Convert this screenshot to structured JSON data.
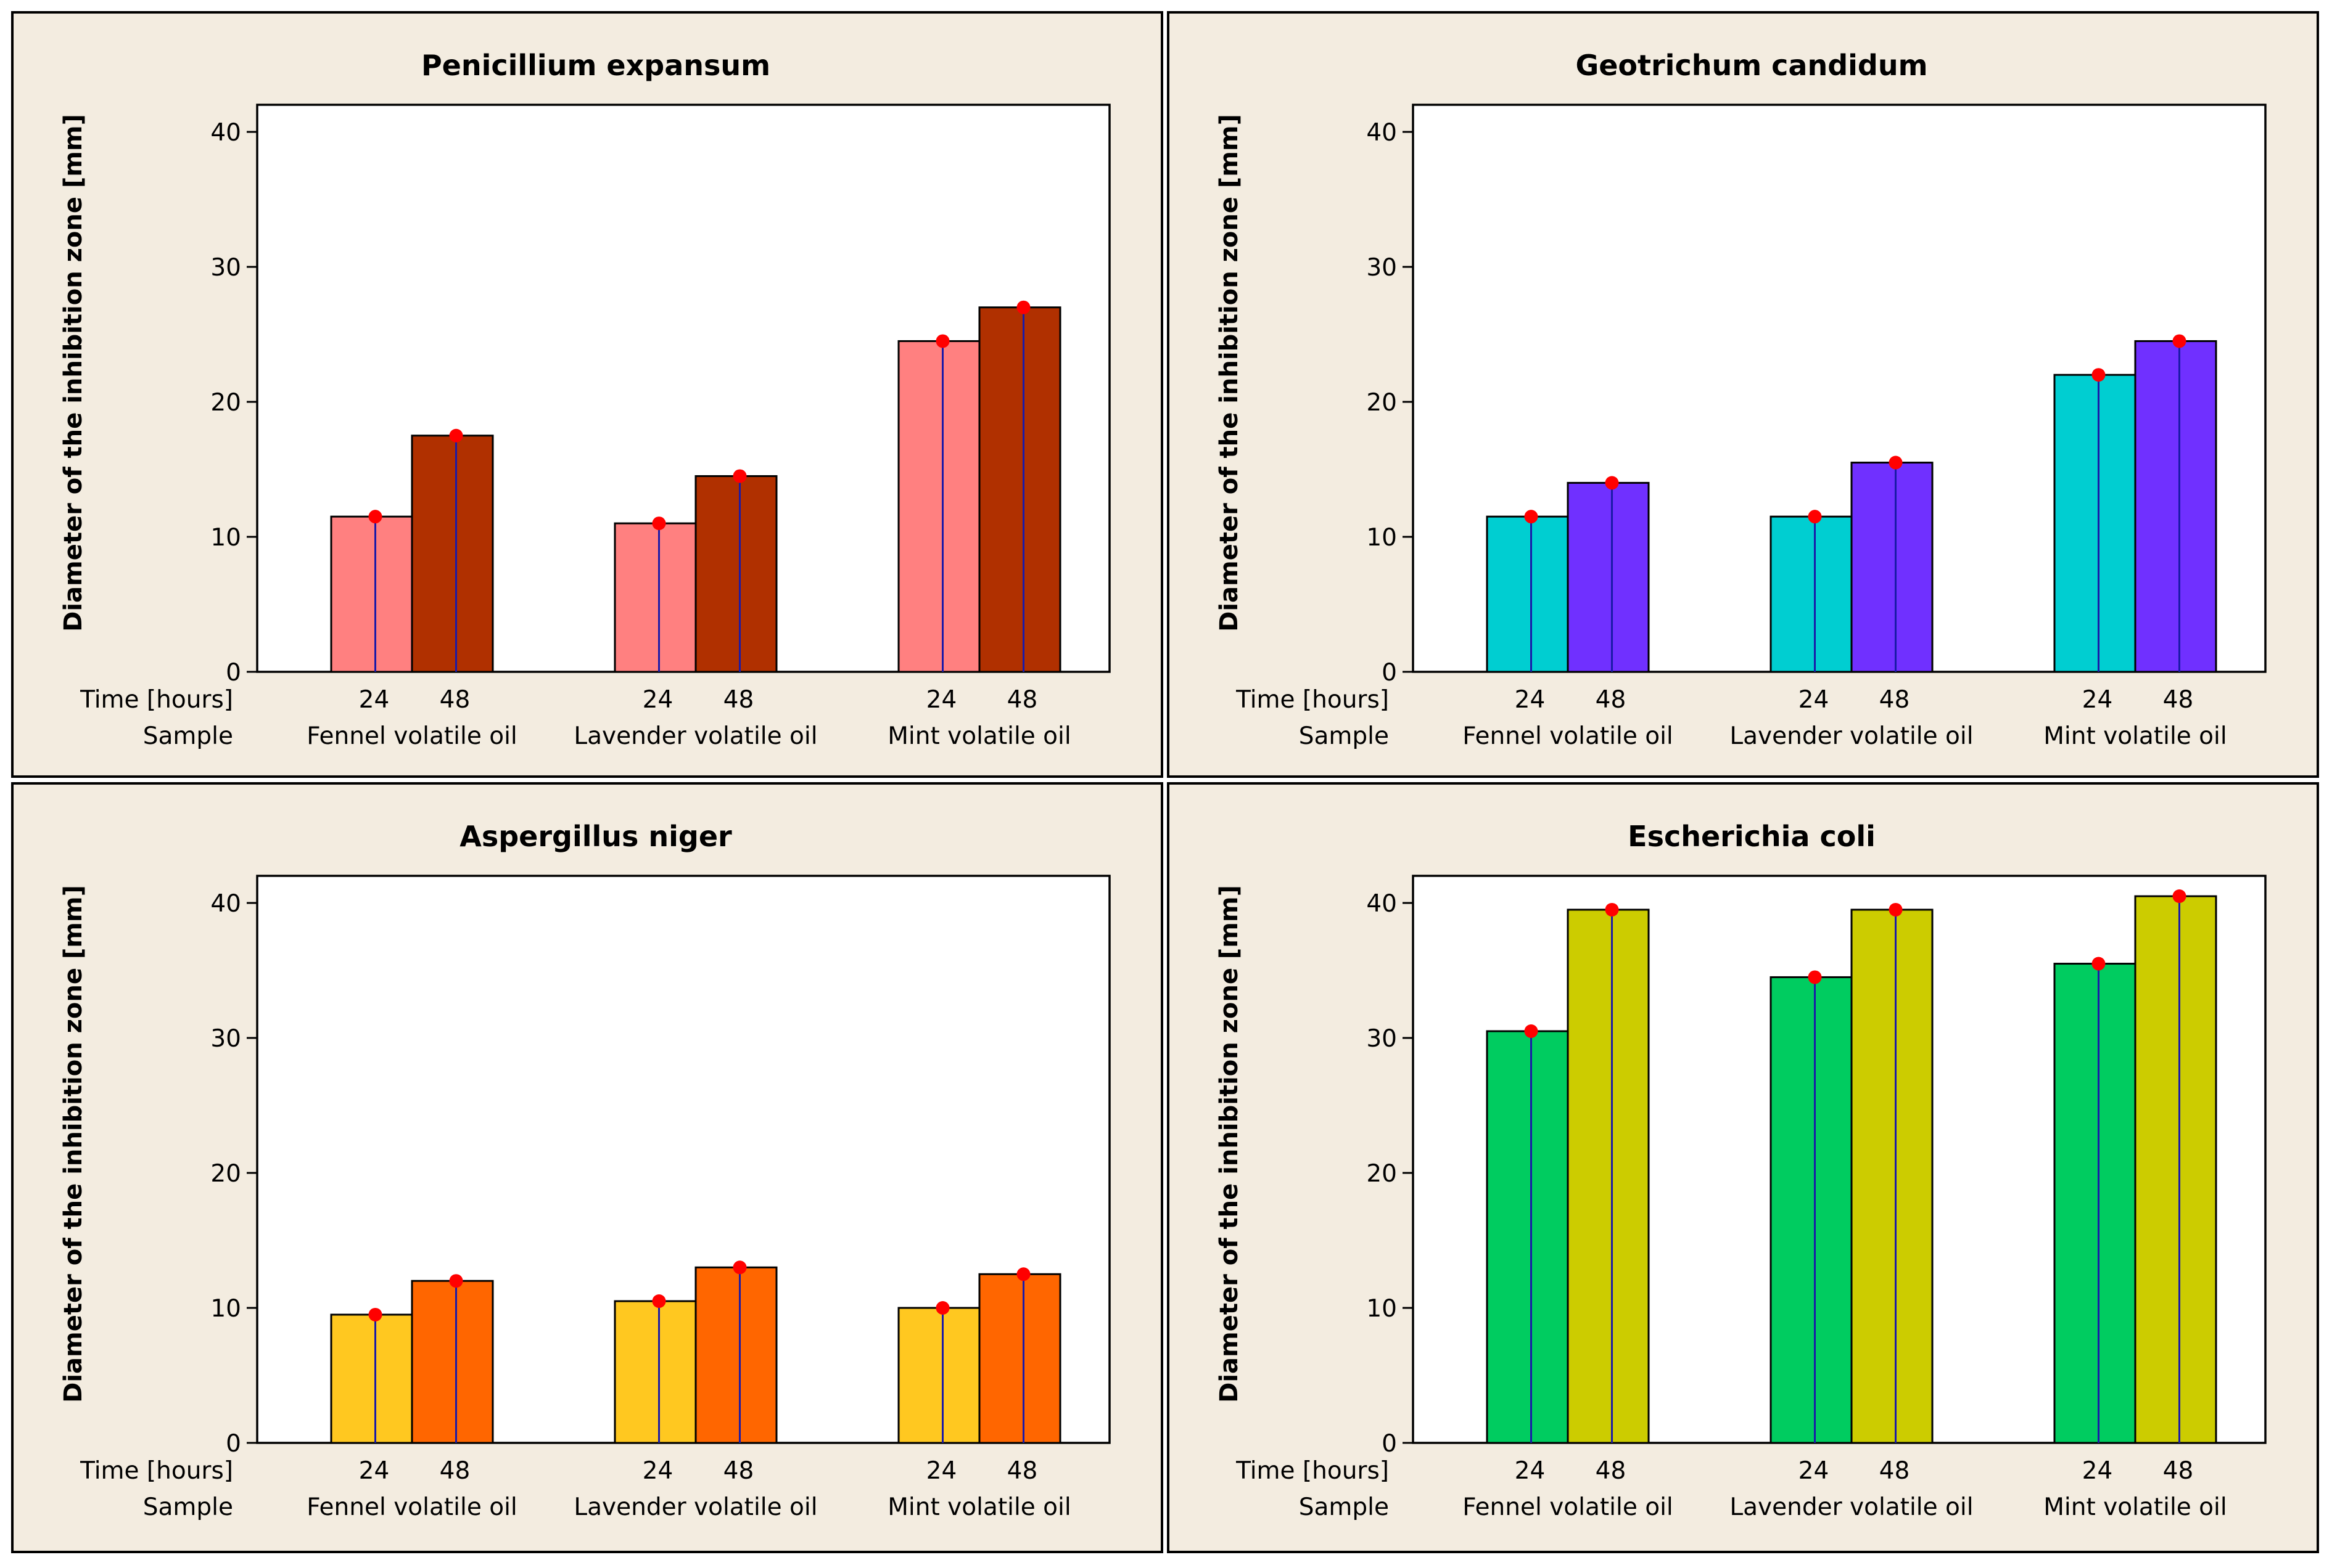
{
  "figure": {
    "background": "#f3ece0",
    "point_color": "#ff0000",
    "line_color": "#1a1aa8"
  },
  "chart_data": [
    {
      "type": "bar",
      "title": "Penicillium expansum",
      "ylabel": "Diameter of the inhibition zone [mm]",
      "ylim": [
        0,
        42
      ],
      "yticks": [
        0,
        10,
        20,
        30,
        40
      ],
      "time_row_label": "Time [hours]",
      "sample_row_label": "Sample",
      "categories": [
        "Fennel volatile oil",
        "Lavender volatile oil",
        "Mint volatile oil"
      ],
      "series": [
        {
          "name": "24",
          "color": "#ff8080",
          "values": [
            11.5,
            11,
            24.5
          ]
        },
        {
          "name": "48",
          "color": "#b03000",
          "values": [
            17.5,
            14.5,
            27
          ]
        }
      ]
    },
    {
      "type": "bar",
      "title": "Geotrichum candidum",
      "ylabel": "Diameter of the inhibition zone [mm]",
      "ylim": [
        0,
        42
      ],
      "yticks": [
        0,
        10,
        20,
        30,
        40
      ],
      "time_row_label": "Time [hours]",
      "sample_row_label": "Sample",
      "categories": [
        "Fennel volatile oil",
        "Lavender volatile oil",
        "Mint volatile oil"
      ],
      "series": [
        {
          "name": "24",
          "color": "#00ced1",
          "values": [
            11.5,
            11.5,
            22
          ]
        },
        {
          "name": "48",
          "color": "#7030ff",
          "values": [
            14,
            15.5,
            24.5
          ]
        }
      ]
    },
    {
      "type": "bar",
      "title": "Aspergillus niger",
      "ylabel": "Diameter of the inhibition zone [mm]",
      "ylim": [
        0,
        42
      ],
      "yticks": [
        0,
        10,
        20,
        30,
        40
      ],
      "time_row_label": "Time [hours]",
      "sample_row_label": "Sample",
      "categories": [
        "Fennel volatile oil",
        "Lavender volatile oil",
        "Mint volatile oil"
      ],
      "series": [
        {
          "name": "24",
          "color": "#ffc820",
          "values": [
            9.5,
            10.5,
            10
          ]
        },
        {
          "name": "48",
          "color": "#ff6600",
          "values": [
            12,
            13,
            12.5
          ]
        }
      ]
    },
    {
      "type": "bar",
      "title": "Escherichia coli",
      "ylabel": "Diameter of the inhibition zone [mm]",
      "ylim": [
        0,
        42
      ],
      "yticks": [
        0,
        10,
        20,
        30,
        40
      ],
      "time_row_label": "Time [hours]",
      "sample_row_label": "Sample",
      "categories": [
        "Fennel volatile oil",
        "Lavender volatile oil",
        "Mint volatile oil"
      ],
      "series": [
        {
          "name": "24",
          "color": "#00cc60",
          "values": [
            30.5,
            34.5,
            35.5
          ]
        },
        {
          "name": "48",
          "color": "#cccc00",
          "values": [
            39.5,
            39.5,
            40.5
          ]
        }
      ]
    }
  ]
}
